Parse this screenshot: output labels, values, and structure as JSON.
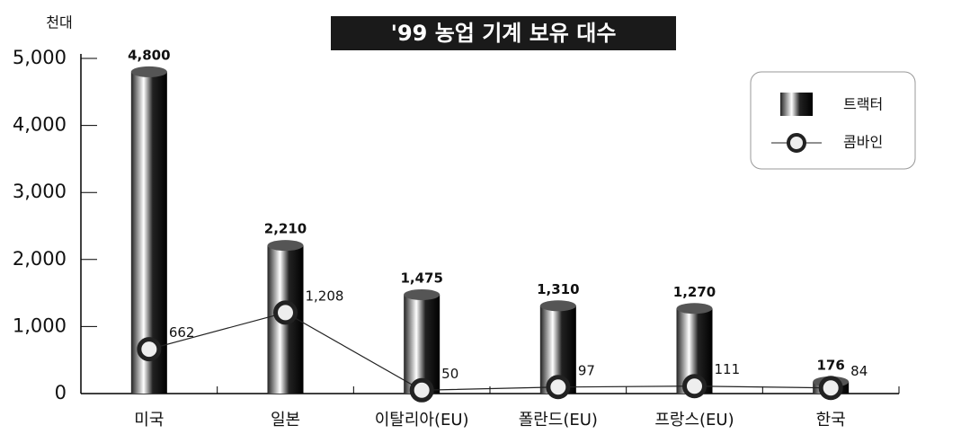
{
  "chart_data": {
    "type": "bar",
    "title": "'99 농업 기계 보유 대수",
    "y_unit": "천대",
    "categories": [
      "미국",
      "일본",
      "이탈리아(EU)",
      "폴란드(EU)",
      "프랑스(EU)",
      "한국"
    ],
    "series": [
      {
        "name": "트랙터",
        "type": "bar",
        "color": "#222222",
        "values": [
          4800,
          2210,
          1475,
          1310,
          1270,
          176
        ],
        "value_labels": [
          "4,800",
          "2,210",
          "1,475",
          "1,310",
          "1,270",
          "176"
        ]
      },
      {
        "name": "콤바인",
        "type": "line",
        "color": "#222222",
        "values": [
          662,
          1208,
          50,
          97,
          111,
          84
        ],
        "value_labels": [
          "662",
          "1,208",
          "50",
          "97",
          "111",
          "84"
        ]
      }
    ],
    "ylim": [
      0,
      5000
    ],
    "yticks": [
      0,
      {
        "value": 1000,
        "label": "1,000"
      },
      {
        "value": 2000,
        "label": "2,000"
      },
      {
        "value": 3000,
        "label": "3,000"
      },
      {
        "value": 4000,
        "label": "4,000"
      },
      {
        "value": 5000,
        "label": "5,000"
      }
    ],
    "legend": "upper right"
  }
}
